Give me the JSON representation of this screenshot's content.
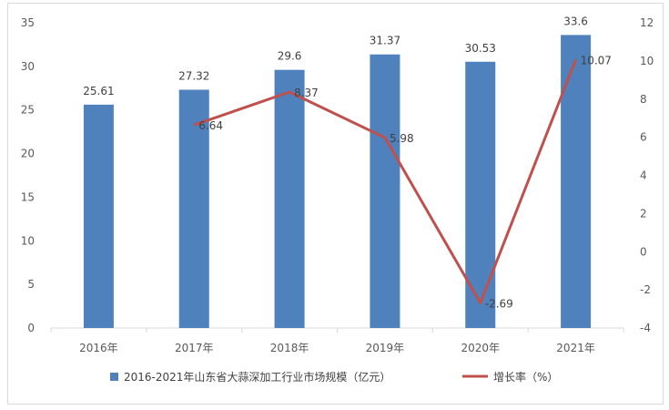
{
  "chart_data": {
    "type": "bar",
    "categories": [
      "2016年",
      "2017年",
      "2018年",
      "2019年",
      "2020年",
      "2021年"
    ],
    "series": [
      {
        "name": "2016-2021年山东省大蒜深加工行业市场规模（亿元）",
        "type": "bar",
        "axis": "left",
        "values": [
          25.61,
          27.32,
          29.6,
          31.37,
          30.53,
          33.6
        ],
        "labels": [
          "25.61",
          "27.32",
          "29.6",
          "31.37",
          "30.53",
          "33.6"
        ],
        "color": "#4f81bd"
      },
      {
        "name": "增长率（%）",
        "type": "line",
        "axis": "right",
        "values": [
          null,
          6.64,
          8.37,
          5.98,
          -2.69,
          10.07
        ],
        "labels": [
          null,
          "6.64",
          "8.37",
          "5.98",
          "-2.69",
          "10.07"
        ],
        "color": "#c0504d"
      }
    ],
    "y_left": {
      "range": [
        0,
        35
      ],
      "ticks": [
        0,
        5,
        10,
        15,
        20,
        25,
        30,
        35
      ]
    },
    "y_right": {
      "range": [
        -4,
        12
      ],
      "ticks": [
        -4,
        -2,
        0,
        2,
        4,
        6,
        8,
        10,
        12
      ]
    },
    "grid": false,
    "legend": "bottom"
  }
}
